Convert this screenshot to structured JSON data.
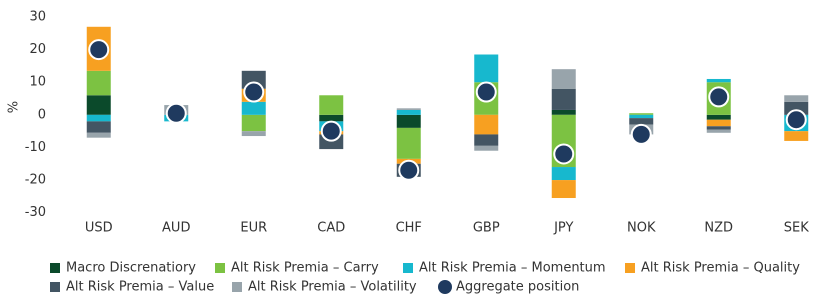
{
  "chart_data": {
    "type": "stacked-bar-scatter",
    "y_label": "%",
    "categories": [
      "USD",
      "AUD",
      "EUR",
      "CAD",
      "CHF",
      "GBP",
      "JPY",
      "NOK",
      "NZD",
      "SEK"
    ],
    "series": [
      {
        "name": "Macro Discrenatiory",
        "color": "#0b4a2b",
        "values": [
          6,
          0,
          0,
          -2,
          -4,
          0,
          1.5,
          0,
          -1.5,
          0
        ]
      },
      {
        "name": "Alt Risk Premia – Carry",
        "color": "#7cc242",
        "values": [
          7.5,
          0,
          -5,
          6,
          -9.5,
          10,
          -16,
          0.5,
          10,
          0
        ]
      },
      {
        "name": "Alt Risk Premia – Momentum",
        "color": "#17b8ce",
        "values": [
          -2,
          -2,
          4,
          -3,
          1.5,
          8.5,
          -4,
          -1,
          1,
          -5
        ]
      },
      {
        "name": "Alt Risk Premia – Quality",
        "color": "#f7a021",
        "values": [
          13.5,
          0,
          4,
          -1,
          -1.5,
          -6,
          -5.5,
          0,
          -2,
          -3
        ]
      },
      {
        "name": "Alt Risk Premia – Value",
        "color": "#435563",
        "values": [
          -3.5,
          0,
          5.5,
          -4.5,
          -4,
          -3.5,
          6.5,
          -2,
          -1,
          4
        ]
      },
      {
        "name": "Alt Risk Premia – Volatility",
        "color": "#98a4ab",
        "values": [
          -1.5,
          3,
          -1.5,
          0,
          0.5,
          -1.5,
          6,
          -3,
          -1,
          2
        ]
      }
    ],
    "aggregate": {
      "name": "Aggregate position",
      "color": "#1f3a5f",
      "values": [
        20,
        0.5,
        7,
        -5,
        -17,
        7,
        -12,
        -6,
        5.5,
        -1.5
      ]
    },
    "ylim": [
      -35,
      30
    ],
    "yticks": [
      -30,
      -20,
      -10,
      0,
      10,
      20,
      30
    ],
    "grid": false
  }
}
